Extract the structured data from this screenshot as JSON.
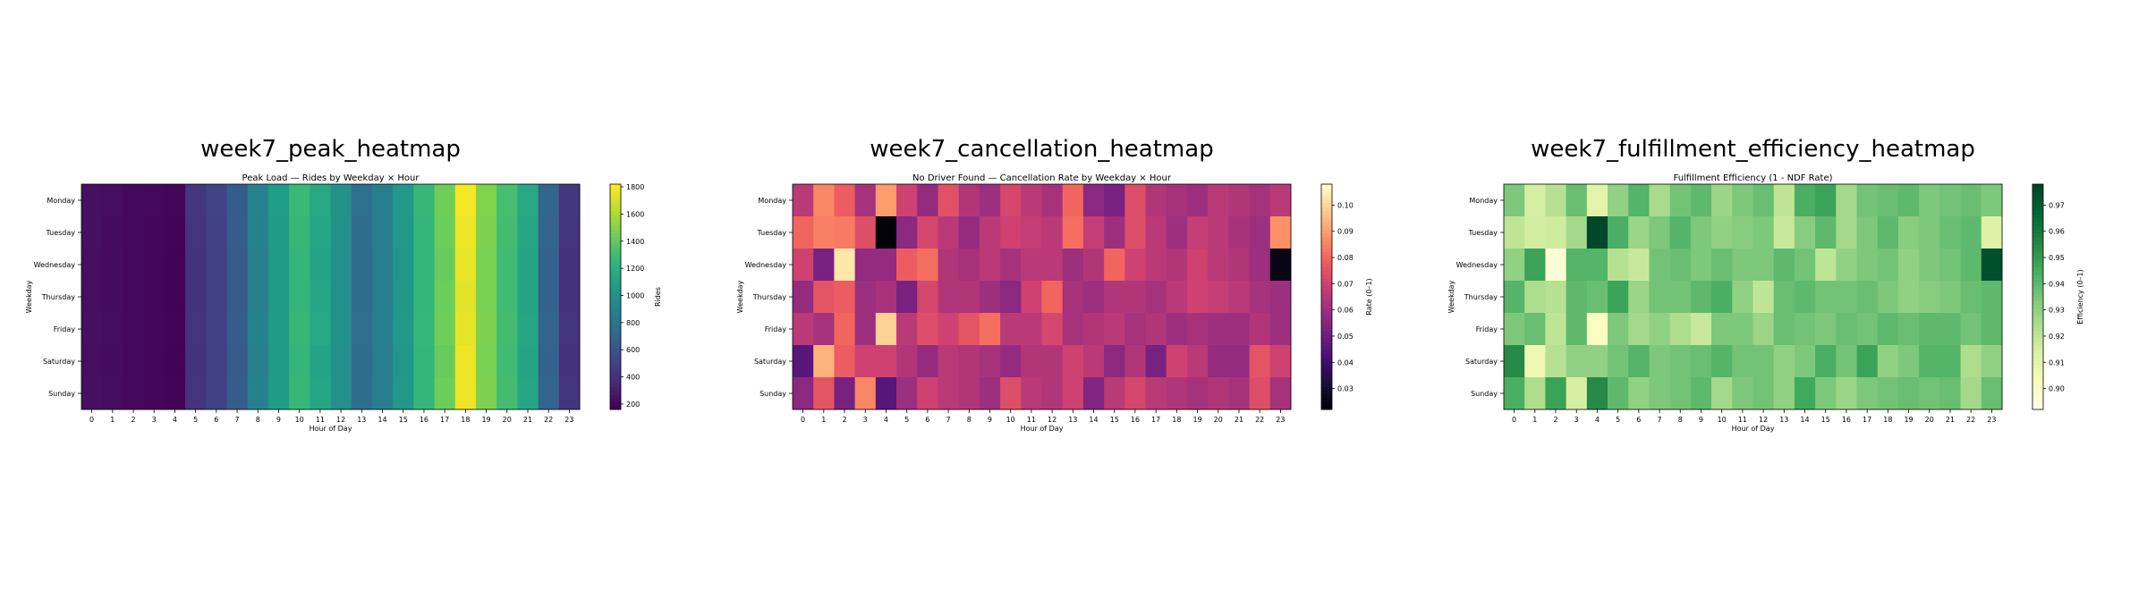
{
  "panels": [
    {
      "heading": "week7_peak_heatmap",
      "chart_data": {
        "type": "heatmap",
        "title": "Peak Load — Rides by Weekday × Hour",
        "xlabel": "Hour of Day",
        "ylabel": "Weekday",
        "x": [
          "0",
          "1",
          "2",
          "3",
          "4",
          "5",
          "6",
          "7",
          "8",
          "9",
          "10",
          "11",
          "12",
          "13",
          "14",
          "15",
          "16",
          "17",
          "18",
          "19",
          "20",
          "21",
          "22",
          "23"
        ],
        "y": [
          "Monday",
          "Tuesday",
          "Wednesday",
          "Thursday",
          "Friday",
          "Saturday",
          "Sunday"
        ],
        "colorbar": {
          "label": "Rides",
          "range": [
            160,
            1820
          ],
          "ticks": [
            "200",
            "400",
            "600",
            "800",
            "1000",
            "1200",
            "1400",
            "1600",
            "1800"
          ]
        },
        "colormap": "viridis",
        "values": [
          [
            230,
            220,
            200,
            190,
            175,
            420,
            500,
            650,
            900,
            1080,
            1280,
            1150,
            1000,
            760,
            880,
            1050,
            1270,
            1450,
            1800,
            1500,
            1320,
            1150,
            700,
            420
          ],
          [
            230,
            210,
            195,
            185,
            170,
            410,
            490,
            640,
            890,
            1070,
            1270,
            1140,
            990,
            750,
            870,
            1040,
            1260,
            1440,
            1780,
            1490,
            1310,
            1140,
            690,
            410
          ],
          [
            220,
            210,
            190,
            180,
            165,
            400,
            480,
            630,
            880,
            1060,
            1260,
            1130,
            980,
            740,
            860,
            1030,
            1250,
            1430,
            1770,
            1480,
            1300,
            1130,
            680,
            400
          ],
          [
            220,
            205,
            190,
            180,
            165,
            400,
            480,
            630,
            880,
            1060,
            1260,
            1140,
            985,
            745,
            865,
            1035,
            1255,
            1440,
            1750,
            1480,
            1300,
            1130,
            680,
            400
          ],
          [
            230,
            215,
            195,
            185,
            170,
            410,
            490,
            640,
            890,
            1070,
            1270,
            1150,
            995,
            755,
            875,
            1045,
            1265,
            1450,
            1760,
            1490,
            1310,
            1140,
            690,
            410
          ],
          [
            220,
            210,
            190,
            180,
            165,
            400,
            480,
            630,
            880,
            1060,
            1260,
            1130,
            980,
            740,
            860,
            1030,
            1250,
            1430,
            1780,
            1480,
            1300,
            1130,
            680,
            400
          ],
          [
            230,
            215,
            195,
            185,
            170,
            410,
            490,
            640,
            890,
            1070,
            1270,
            1140,
            990,
            750,
            870,
            1040,
            1260,
            1440,
            1780,
            1490,
            1310,
            1140,
            690,
            410
          ]
        ]
      }
    },
    {
      "heading": "week7_cancellation_heatmap",
      "chart_data": {
        "type": "heatmap",
        "title": "No Driver Found — Cancellation Rate by Weekday × Hour",
        "xlabel": "Hour of Day",
        "ylabel": "Weekday",
        "x": [
          "0",
          "1",
          "2",
          "3",
          "4",
          "5",
          "6",
          "7",
          "8",
          "9",
          "10",
          "11",
          "12",
          "13",
          "14",
          "15",
          "16",
          "17",
          "18",
          "19",
          "20",
          "21",
          "22",
          "23"
        ],
        "y": [
          "Monday",
          "Tuesday",
          "Wednesday",
          "Thursday",
          "Friday",
          "Saturday",
          "Sunday"
        ],
        "colorbar": {
          "label": "Rate (0–1)",
          "range": [
            0.022,
            0.108
          ],
          "ticks": [
            "0.03",
            "0.04",
            "0.05",
            "0.06",
            "0.07",
            "0.08",
            "0.09",
            "0.10"
          ]
        },
        "colormap": "magma",
        "values": [
          [
            0.066,
            0.086,
            0.078,
            0.062,
            0.09,
            0.07,
            0.058,
            0.075,
            0.064,
            0.06,
            0.072,
            0.066,
            0.062,
            0.08,
            0.056,
            0.052,
            0.074,
            0.064,
            0.062,
            0.06,
            0.066,
            0.064,
            0.062,
            0.066
          ],
          [
            0.08,
            0.085,
            0.084,
            0.074,
            0.023,
            0.056,
            0.072,
            0.066,
            0.058,
            0.066,
            0.07,
            0.068,
            0.066,
            0.082,
            0.068,
            0.06,
            0.074,
            0.066,
            0.06,
            0.068,
            0.066,
            0.062,
            0.06,
            0.088
          ],
          [
            0.07,
            0.052,
            0.104,
            0.058,
            0.058,
            0.078,
            0.082,
            0.064,
            0.062,
            0.066,
            0.062,
            0.066,
            0.066,
            0.06,
            0.064,
            0.08,
            0.07,
            0.066,
            0.064,
            0.07,
            0.066,
            0.064,
            0.06,
            0.025
          ],
          [
            0.058,
            0.076,
            0.078,
            0.06,
            0.062,
            0.052,
            0.072,
            0.064,
            0.064,
            0.06,
            0.056,
            0.07,
            0.08,
            0.062,
            0.06,
            0.064,
            0.064,
            0.062,
            0.066,
            0.07,
            0.068,
            0.066,
            0.062,
            0.06
          ],
          [
            0.066,
            0.062,
            0.08,
            0.06,
            0.1,
            0.066,
            0.074,
            0.07,
            0.076,
            0.082,
            0.066,
            0.066,
            0.072,
            0.062,
            0.064,
            0.066,
            0.062,
            0.064,
            0.06,
            0.062,
            0.06,
            0.06,
            0.064,
            0.06
          ],
          [
            0.045,
            0.094,
            0.078,
            0.07,
            0.07,
            0.064,
            0.058,
            0.066,
            0.064,
            0.062,
            0.058,
            0.064,
            0.064,
            0.07,
            0.066,
            0.056,
            0.064,
            0.052,
            0.07,
            0.066,
            0.058,
            0.058,
            0.076,
            0.07
          ],
          [
            0.056,
            0.076,
            0.052,
            0.086,
            0.045,
            0.06,
            0.07,
            0.066,
            0.064,
            0.06,
            0.074,
            0.066,
            0.064,
            0.07,
            0.054,
            0.066,
            0.072,
            0.066,
            0.064,
            0.062,
            0.064,
            0.062,
            0.074,
            0.062
          ]
        ]
      }
    },
    {
      "heading": "week7_fulfillment_efficiency_heatmap",
      "chart_data": {
        "type": "heatmap",
        "title": "Fulfillment Efficiency (1 - NDF Rate)",
        "xlabel": "Hour of Day",
        "ylabel": "Weekday",
        "x": [
          "0",
          "1",
          "2",
          "3",
          "4",
          "5",
          "6",
          "7",
          "8",
          "9",
          "10",
          "11",
          "12",
          "13",
          "14",
          "15",
          "16",
          "17",
          "18",
          "19",
          "20",
          "21",
          "22",
          "23"
        ],
        "y": [
          "Monday",
          "Tuesday",
          "Wednesday",
          "Thursday",
          "Friday",
          "Saturday",
          "Sunday"
        ],
        "colorbar": {
          "label": "Efficiency (0–1)",
          "range": [
            0.892,
            0.978
          ],
          "ticks": [
            "0.90",
            "0.91",
            "0.92",
            "0.93",
            "0.94",
            "0.95",
            "0.96",
            "0.97"
          ]
        },
        "colormap": "YlGn",
        "values": [
          [
            0.934,
            0.914,
            0.922,
            0.938,
            0.91,
            0.93,
            0.942,
            0.925,
            0.936,
            0.94,
            0.928,
            0.934,
            0.938,
            0.92,
            0.944,
            0.948,
            0.926,
            0.936,
            0.938,
            0.94,
            0.934,
            0.936,
            0.938,
            0.934
          ],
          [
            0.92,
            0.915,
            0.916,
            0.926,
            0.977,
            0.944,
            0.928,
            0.934,
            0.942,
            0.934,
            0.93,
            0.932,
            0.934,
            0.918,
            0.932,
            0.94,
            0.926,
            0.934,
            0.94,
            0.932,
            0.934,
            0.938,
            0.94,
            0.912
          ],
          [
            0.93,
            0.948,
            0.896,
            0.942,
            0.942,
            0.922,
            0.918,
            0.936,
            0.938,
            0.934,
            0.938,
            0.934,
            0.934,
            0.94,
            0.936,
            0.92,
            0.93,
            0.934,
            0.936,
            0.93,
            0.934,
            0.936,
            0.94,
            0.975
          ],
          [
            0.942,
            0.924,
            0.922,
            0.94,
            0.938,
            0.948,
            0.928,
            0.936,
            0.936,
            0.94,
            0.944,
            0.93,
            0.92,
            0.938,
            0.94,
            0.936,
            0.936,
            0.938,
            0.934,
            0.93,
            0.932,
            0.934,
            0.938,
            0.94
          ],
          [
            0.934,
            0.938,
            0.92,
            0.94,
            0.9,
            0.934,
            0.926,
            0.93,
            0.924,
            0.918,
            0.934,
            0.934,
            0.928,
            0.938,
            0.936,
            0.934,
            0.938,
            0.936,
            0.94,
            0.938,
            0.94,
            0.94,
            0.936,
            0.94
          ],
          [
            0.955,
            0.906,
            0.922,
            0.93,
            0.93,
            0.936,
            0.942,
            0.934,
            0.936,
            0.938,
            0.942,
            0.936,
            0.936,
            0.93,
            0.934,
            0.944,
            0.936,
            0.948,
            0.93,
            0.934,
            0.942,
            0.942,
            0.924,
            0.93
          ],
          [
            0.944,
            0.924,
            0.948,
            0.914,
            0.955,
            0.94,
            0.93,
            0.934,
            0.936,
            0.94,
            0.926,
            0.934,
            0.936,
            0.93,
            0.946,
            0.934,
            0.928,
            0.934,
            0.936,
            0.938,
            0.936,
            0.938,
            0.926,
            0.938
          ]
        ]
      }
    }
  ]
}
